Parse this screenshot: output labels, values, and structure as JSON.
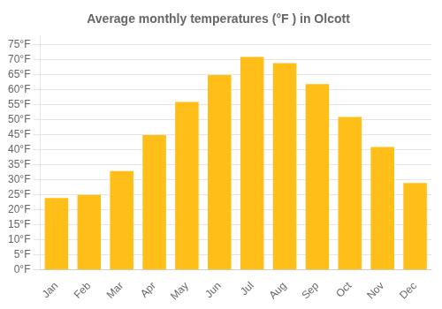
{
  "chart_data": {
    "type": "bar",
    "title": "Average monthly temperatures (°F ) in Olcott",
    "categories": [
      "Jan",
      "Feb",
      "Mar",
      "Apr",
      "May",
      "Jun",
      "Jul",
      "Aug",
      "Sep",
      "Oct",
      "Nov",
      "Dec"
    ],
    "values": [
      24,
      25,
      33,
      45,
      56,
      65,
      71,
      69,
      62,
      51,
      41,
      29
    ],
    "color": "#FFBE18",
    "ylim": [
      0,
      78
    ],
    "yticks": [
      {
        "value": 0,
        "label": "0°F"
      },
      {
        "value": 5,
        "label": "5°F"
      },
      {
        "value": 10,
        "label": "10°F"
      },
      {
        "value": 15,
        "label": "15°F"
      },
      {
        "value": 20,
        "label": "20°F"
      },
      {
        "value": 25,
        "label": "25°F"
      },
      {
        "value": 30,
        "label": "30°F"
      },
      {
        "value": 35,
        "label": "35°F"
      },
      {
        "value": 40,
        "label": "40°F"
      },
      {
        "value": 45,
        "label": "45°F"
      },
      {
        "value": 50,
        "label": "50°F"
      },
      {
        "value": 55,
        "label": "55°F"
      },
      {
        "value": 60,
        "label": "60°F"
      },
      {
        "value": 65,
        "label": "65°F"
      },
      {
        "value": 70,
        "label": "70°F"
      },
      {
        "value": 75,
        "label": "75°F"
      }
    ],
    "grid": true
  }
}
